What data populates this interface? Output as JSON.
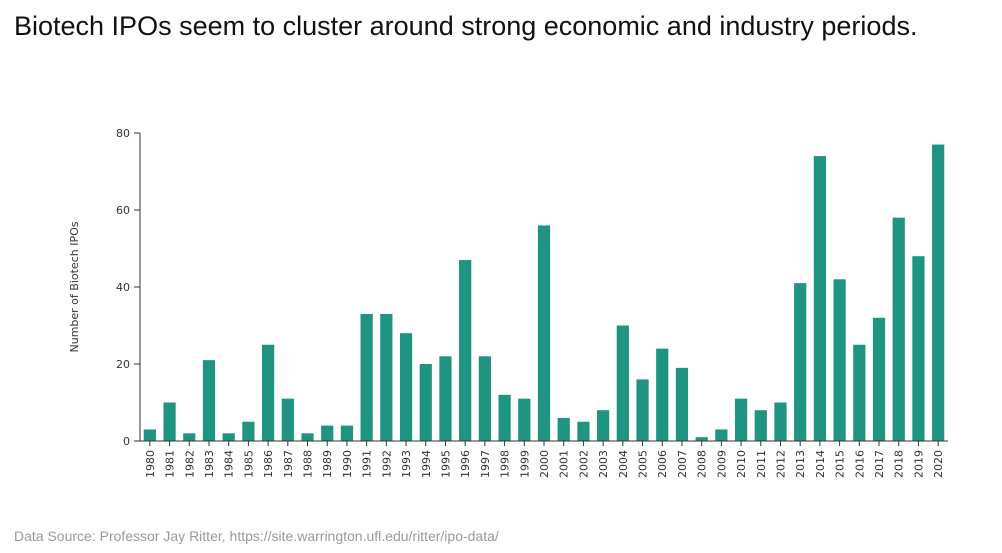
{
  "headline": "Biotech IPOs seem to cluster around strong economic and industry periods.",
  "source": "Data Source: Professor Jay Ritter, https://site.warrington.ufl.edu/ritter/ipo-data/",
  "colors": {
    "bar": "#1f9480",
    "axis": "#333333",
    "text": "#111111",
    "source": "#9a9a9a"
  },
  "chart_data": {
    "type": "bar",
    "title": "",
    "xlabel": "",
    "ylabel": "Number of Biotech IPOs",
    "ylim": [
      0,
      80
    ],
    "yticks": [
      0,
      20,
      40,
      60,
      80
    ],
    "grid": false,
    "categories": [
      "1980",
      "1981",
      "1982",
      "1983",
      "1984",
      "1985",
      "1986",
      "1987",
      "1988",
      "1989",
      "1990",
      "1991",
      "1992",
      "1993",
      "1994",
      "1995",
      "1996",
      "1997",
      "1998",
      "1999",
      "2000",
      "2001",
      "2002",
      "2003",
      "2004",
      "2005",
      "2006",
      "2007",
      "2008",
      "2009",
      "2010",
      "2011",
      "2012",
      "2013",
      "2014",
      "2015",
      "2016",
      "2017",
      "2018",
      "2019",
      "2020"
    ],
    "values": [
      3,
      10,
      2,
      21,
      2,
      5,
      25,
      11,
      2,
      4,
      4,
      33,
      33,
      28,
      20,
      22,
      47,
      22,
      12,
      11,
      56,
      6,
      5,
      8,
      30,
      16,
      24,
      19,
      1,
      3,
      11,
      8,
      10,
      41,
      74,
      42,
      25,
      32,
      58,
      48,
      77
    ]
  }
}
